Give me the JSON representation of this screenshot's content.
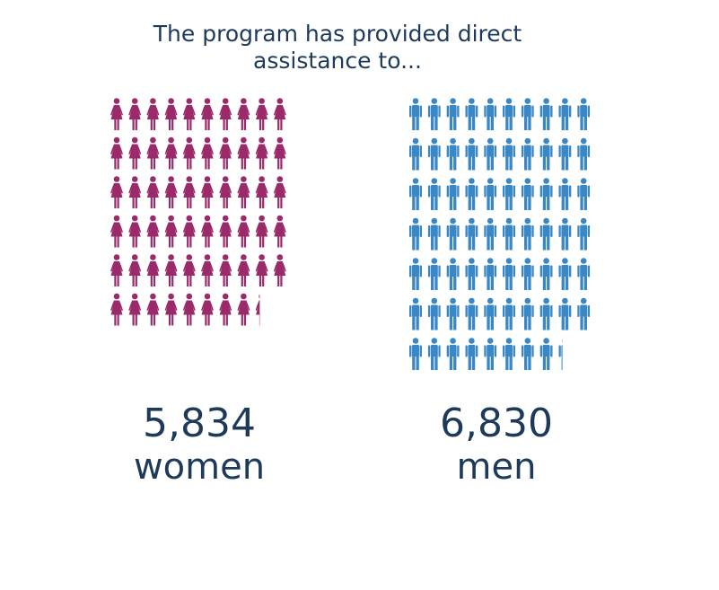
{
  "chart_data": {
    "type": "pictogram",
    "title": "The program has provided direct",
    "subtitle": "assistance to...",
    "categories": [
      "women",
      "men"
    ],
    "values": [
      5834,
      6830
    ],
    "value_labels": [
      "5,834",
      "6,830"
    ],
    "colors": [
      "#9b2a6b",
      "#3a87c6"
    ]
  }
}
